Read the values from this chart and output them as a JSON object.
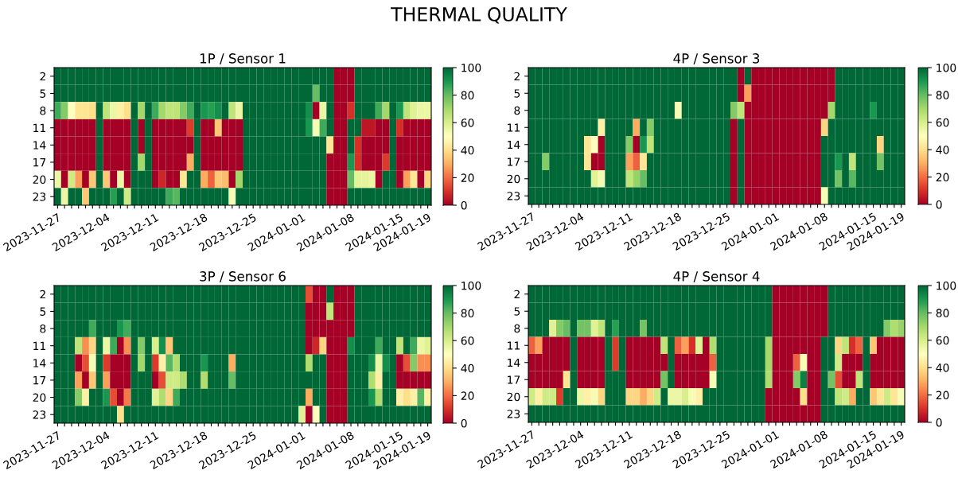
{
  "chart_data": [
    {
      "type": "other",
      "title": "THERMAL QUALITY"
    },
    {
      "type": "heatmap",
      "title": "1P / Sensor 1",
      "clim": [
        0,
        100
      ],
      "cticks": [
        0,
        20,
        40,
        60,
        80,
        100
      ],
      "categories": [
        "2023-11-27",
        null,
        null,
        null,
        null,
        null,
        null,
        "2023-12-04",
        null,
        null,
        null,
        null,
        null,
        null,
        "2023-12-11",
        null,
        null,
        null,
        null,
        null,
        null,
        "2023-12-18",
        null,
        null,
        null,
        null,
        null,
        null,
        "2023-12-25",
        null,
        null,
        null,
        null,
        null,
        null,
        "2024-01-01",
        null,
        null,
        null,
        null,
        null,
        null,
        "2024-01-08",
        null,
        null,
        null,
        null,
        null,
        null,
        "2024-01-15",
        null,
        null,
        null,
        "2024-01-19"
      ],
      "y_categories": [
        "2",
        "5",
        "8",
        "11",
        "14",
        "17",
        "20",
        "23"
      ],
      "cells": [
        [
          100,
          100,
          100,
          100,
          100,
          100,
          100,
          100,
          100,
          100,
          100,
          100,
          100,
          100,
          100,
          100,
          100,
          100,
          100,
          100,
          100,
          100,
          100,
          100,
          100,
          100,
          100,
          100,
          100,
          100,
          100,
          100,
          100,
          100,
          100,
          100,
          100,
          100,
          100,
          100,
          0,
          0,
          0,
          100,
          100,
          100,
          100,
          100,
          100,
          100,
          100,
          100,
          100,
          100
        ],
        [
          100,
          100,
          100,
          100,
          100,
          100,
          100,
          100,
          100,
          100,
          100,
          100,
          100,
          100,
          100,
          100,
          100,
          100,
          100,
          100,
          100,
          100,
          100,
          100,
          100,
          100,
          100,
          100,
          100,
          100,
          100,
          100,
          100,
          100,
          100,
          100,
          100,
          80,
          100,
          100,
          0,
          0,
          0,
          100,
          100,
          100,
          100,
          100,
          100,
          100,
          100,
          100,
          100,
          100
        ],
        [
          85,
          75,
          50,
          42,
          42,
          40,
          100,
          65,
          55,
          45,
          40,
          100,
          70,
          100,
          85,
          70,
          65,
          65,
          75,
          85,
          100,
          90,
          88,
          92,
          100,
          65,
          55,
          100,
          100,
          100,
          100,
          100,
          100,
          100,
          100,
          100,
          92,
          0,
          55,
          100,
          0,
          0,
          10,
          100,
          100,
          100,
          85,
          70,
          100,
          90,
          65,
          58,
          55,
          55
        ],
        [
          0,
          0,
          0,
          0,
          0,
          0,
          100,
          0,
          0,
          0,
          0,
          100,
          0,
          100,
          0,
          0,
          0,
          0,
          0,
          12,
          100,
          0,
          0,
          35,
          0,
          0,
          0,
          100,
          100,
          100,
          100,
          100,
          100,
          100,
          100,
          100,
          90,
          52,
          85,
          100,
          0,
          0,
          100,
          100,
          5,
          5,
          0,
          0,
          100,
          10,
          0,
          0,
          0,
          0
        ],
        [
          0,
          0,
          0,
          0,
          0,
          0,
          100,
          0,
          0,
          0,
          0,
          100,
          0,
          100,
          0,
          0,
          0,
          0,
          0,
          0,
          100,
          0,
          0,
          0,
          0,
          0,
          0,
          100,
          100,
          100,
          100,
          100,
          100,
          100,
          100,
          100,
          100,
          100,
          100,
          42,
          0,
          0,
          100,
          10,
          0,
          0,
          0,
          0,
          100,
          0,
          0,
          0,
          0,
          0
        ],
        [
          0,
          0,
          0,
          0,
          0,
          0,
          100,
          0,
          0,
          0,
          0,
          100,
          70,
          100,
          0,
          0,
          0,
          0,
          0,
          30,
          100,
          0,
          0,
          0,
          0,
          0,
          0,
          100,
          100,
          100,
          100,
          100,
          100,
          100,
          100,
          100,
          100,
          100,
          100,
          0,
          0,
          0,
          90,
          10,
          0,
          0,
          0,
          12,
          100,
          0,
          0,
          0,
          0,
          0
        ],
        [
          55,
          0,
          62,
          28,
          0,
          35,
          100,
          35,
          0,
          55,
          0,
          100,
          100,
          100,
          0,
          8,
          0,
          0,
          42,
          100,
          100,
          30,
          18,
          35,
          33,
          0,
          70,
          100,
          100,
          100,
          100,
          100,
          100,
          100,
          100,
          100,
          100,
          100,
          100,
          0,
          0,
          0,
          80,
          57,
          57,
          55,
          0,
          100,
          100,
          0,
          28,
          42,
          0,
          38
        ],
        [
          100,
          55,
          100,
          100,
          35,
          100,
          100,
          100,
          88,
          100,
          62,
          100,
          100,
          100,
          100,
          100,
          85,
          82,
          100,
          100,
          100,
          100,
          100,
          100,
          100,
          52,
          100,
          100,
          100,
          100,
          100,
          100,
          100,
          100,
          100,
          100,
          100,
          100,
          100,
          0,
          0,
          0,
          100,
          100,
          100,
          100,
          100,
          100,
          100,
          100,
          100,
          100,
          100,
          100
        ]
      ]
    },
    {
      "type": "heatmap",
      "title": "4P / Sensor 3",
      "clim": [
        0,
        100
      ],
      "cticks": [
        0,
        20,
        40,
        60,
        80,
        100
      ],
      "categories": [
        "2023-11-27",
        null,
        null,
        null,
        null,
        null,
        null,
        "2023-12-04",
        null,
        null,
        null,
        null,
        null,
        null,
        "2023-12-11",
        null,
        null,
        null,
        null,
        null,
        null,
        "2023-12-18",
        null,
        null,
        null,
        null,
        null,
        null,
        "2023-12-25",
        null,
        null,
        null,
        null,
        null,
        null,
        "2024-01-01",
        null,
        null,
        null,
        null,
        null,
        null,
        "2024-01-08",
        null,
        null,
        null,
        null,
        null,
        null,
        "2024-01-15",
        null,
        null,
        null,
        "2024-01-19"
      ],
      "y_categories": [
        "2",
        "5",
        "8",
        "11",
        "14",
        "17",
        "20",
        "23"
      ],
      "cells": [
        [
          100,
          100,
          100,
          100,
          100,
          100,
          100,
          100,
          100,
          100,
          100,
          100,
          100,
          100,
          100,
          100,
          100,
          100,
          100,
          100,
          100,
          100,
          100,
          100,
          100,
          100,
          100,
          100,
          100,
          100,
          0,
          100,
          0,
          0,
          0,
          0,
          0,
          0,
          0,
          0,
          0,
          0,
          0,
          0,
          100,
          100,
          100,
          100,
          100,
          100,
          100,
          100,
          100,
          100
        ],
        [
          100,
          100,
          100,
          100,
          100,
          100,
          100,
          100,
          100,
          100,
          100,
          100,
          100,
          100,
          100,
          100,
          100,
          100,
          100,
          100,
          100,
          100,
          100,
          100,
          100,
          100,
          100,
          100,
          100,
          100,
          0,
          28,
          0,
          0,
          0,
          0,
          0,
          0,
          0,
          0,
          0,
          0,
          0,
          0,
          100,
          100,
          100,
          100,
          100,
          100,
          100,
          100,
          100,
          100
        ],
        [
          100,
          100,
          100,
          100,
          100,
          100,
          100,
          100,
          100,
          100,
          100,
          100,
          100,
          100,
          100,
          100,
          100,
          100,
          100,
          100,
          100,
          52,
          100,
          100,
          100,
          100,
          100,
          100,
          100,
          75,
          65,
          0,
          0,
          0,
          0,
          0,
          0,
          0,
          0,
          0,
          0,
          0,
          0,
          70,
          100,
          100,
          100,
          100,
          100,
          90,
          100,
          100,
          100,
          100
        ],
        [
          100,
          100,
          100,
          100,
          100,
          100,
          100,
          100,
          100,
          100,
          45,
          100,
          100,
          100,
          100,
          30,
          100,
          75,
          100,
          100,
          100,
          100,
          100,
          100,
          100,
          100,
          100,
          100,
          100,
          0,
          100,
          0,
          0,
          0,
          0,
          0,
          0,
          0,
          0,
          0,
          0,
          0,
          38,
          100,
          100,
          100,
          100,
          100,
          100,
          100,
          100,
          100,
          100,
          100
        ],
        [
          100,
          100,
          100,
          100,
          100,
          100,
          100,
          100,
          42,
          50,
          0,
          100,
          100,
          100,
          75,
          0,
          90,
          65,
          100,
          100,
          100,
          100,
          100,
          100,
          100,
          100,
          100,
          100,
          100,
          0,
          100,
          0,
          0,
          0,
          0,
          0,
          0,
          0,
          0,
          0,
          0,
          0,
          100,
          100,
          100,
          100,
          100,
          100,
          100,
          100,
          38,
          100,
          100,
          100
        ],
        [
          100,
          100,
          75,
          100,
          100,
          100,
          100,
          100,
          42,
          0,
          0,
          100,
          100,
          100,
          28,
          18,
          42,
          100,
          100,
          100,
          100,
          100,
          100,
          100,
          100,
          100,
          100,
          100,
          100,
          0,
          100,
          0,
          0,
          0,
          0,
          0,
          0,
          0,
          0,
          0,
          0,
          0,
          100,
          100,
          90,
          100,
          65,
          100,
          100,
          100,
          78,
          100,
          100,
          100
        ],
        [
          100,
          100,
          100,
          100,
          100,
          100,
          100,
          100,
          100,
          58,
          53,
          100,
          100,
          100,
          65,
          72,
          80,
          100,
          100,
          100,
          100,
          100,
          100,
          100,
          100,
          100,
          100,
          100,
          100,
          0,
          100,
          0,
          0,
          0,
          0,
          0,
          0,
          0,
          0,
          0,
          0,
          0,
          100,
          100,
          78,
          100,
          82,
          100,
          100,
          100,
          100,
          100,
          100,
          100
        ],
        [
          100,
          100,
          100,
          100,
          100,
          100,
          100,
          100,
          100,
          100,
          100,
          100,
          100,
          100,
          100,
          100,
          100,
          100,
          100,
          100,
          100,
          100,
          100,
          100,
          100,
          100,
          100,
          100,
          100,
          0,
          100,
          0,
          0,
          0,
          0,
          0,
          0,
          0,
          0,
          0,
          0,
          0,
          52,
          100,
          100,
          100,
          100,
          100,
          100,
          100,
          100,
          100,
          100,
          100
        ]
      ]
    },
    {
      "type": "heatmap",
      "title": "3P / Sensor 6",
      "clim": [
        0,
        100
      ],
      "cticks": [
        0,
        20,
        40,
        60,
        80,
        100
      ],
      "categories": [
        "2023-11-27",
        null,
        null,
        null,
        null,
        null,
        null,
        "2023-12-04",
        null,
        null,
        null,
        null,
        null,
        null,
        "2023-12-11",
        null,
        null,
        null,
        null,
        null,
        null,
        "2023-12-18",
        null,
        null,
        null,
        null,
        null,
        null,
        "2023-12-25",
        null,
        null,
        null,
        null,
        null,
        null,
        "2024-01-01",
        null,
        null,
        null,
        null,
        null,
        null,
        "2024-01-08",
        null,
        null,
        null,
        null,
        null,
        null,
        "2024-01-15",
        null,
        null,
        null,
        "2024-01-19"
      ],
      "y_categories": [
        "2",
        "5",
        "8",
        "11",
        "14",
        "17",
        "20",
        "23"
      ],
      "cells": [
        [
          100,
          100,
          100,
          100,
          100,
          100,
          100,
          100,
          100,
          100,
          100,
          100,
          100,
          100,
          100,
          100,
          100,
          100,
          100,
          100,
          100,
          100,
          100,
          100,
          100,
          100,
          100,
          100,
          100,
          100,
          100,
          100,
          100,
          100,
          100,
          100,
          15,
          0,
          0,
          100,
          0,
          0,
          0,
          100,
          100,
          100,
          100,
          100,
          100,
          100,
          100,
          100,
          100,
          100
        ],
        [
          100,
          100,
          100,
          100,
          100,
          100,
          100,
          100,
          100,
          100,
          100,
          100,
          100,
          100,
          100,
          100,
          100,
          100,
          100,
          100,
          100,
          100,
          100,
          100,
          100,
          100,
          100,
          100,
          100,
          100,
          100,
          100,
          100,
          100,
          100,
          100,
          0,
          0,
          0,
          65,
          0,
          0,
          0,
          100,
          100,
          100,
          100,
          100,
          100,
          100,
          100,
          100,
          100,
          100
        ],
        [
          100,
          100,
          100,
          100,
          100,
          85,
          100,
          100,
          100,
          90,
          85,
          100,
          100,
          100,
          100,
          100,
          100,
          100,
          100,
          100,
          100,
          100,
          100,
          100,
          100,
          100,
          100,
          100,
          100,
          100,
          100,
          100,
          100,
          100,
          100,
          100,
          0,
          0,
          0,
          0,
          0,
          0,
          0,
          100,
          100,
          100,
          100,
          100,
          100,
          100,
          100,
          100,
          100,
          100
        ],
        [
          100,
          100,
          100,
          65,
          25,
          38,
          100,
          55,
          85,
          0,
          25,
          100,
          75,
          100,
          60,
          92,
          35,
          100,
          100,
          100,
          100,
          100,
          100,
          100,
          100,
          100,
          100,
          100,
          100,
          100,
          100,
          100,
          100,
          100,
          100,
          100,
          0,
          8,
          38,
          0,
          0,
          0,
          92,
          100,
          100,
          100,
          85,
          100,
          100,
          65,
          100,
          85,
          55,
          58
        ],
        [
          100,
          100,
          100,
          0,
          15,
          52,
          100,
          12,
          0,
          0,
          0,
          100,
          70,
          100,
          12,
          45,
          82,
          68,
          100,
          100,
          100,
          90,
          100,
          100,
          100,
          30,
          100,
          100,
          100,
          100,
          100,
          100,
          100,
          100,
          100,
          100,
          68,
          100,
          100,
          0,
          0,
          0,
          100,
          100,
          100,
          92,
          55,
          92,
          100,
          0,
          15,
          75,
          25,
          25
        ],
        [
          100,
          100,
          100,
          28,
          0,
          35,
          100,
          28,
          0,
          0,
          0,
          100,
          100,
          100,
          0,
          15,
          62,
          62,
          68,
          100,
          100,
          68,
          100,
          100,
          100,
          80,
          100,
          100,
          100,
          100,
          100,
          100,
          100,
          100,
          100,
          100,
          100,
          100,
          100,
          0,
          0,
          0,
          100,
          100,
          100,
          68,
          45,
          100,
          100,
          0,
          0,
          0,
          0,
          0
        ],
        [
          100,
          100,
          100,
          75,
          45,
          100,
          100,
          90,
          15,
          0,
          22,
          100,
          100,
          100,
          58,
          68,
          38,
          85,
          100,
          100,
          100,
          100,
          100,
          100,
          100,
          100,
          100,
          100,
          100,
          100,
          100,
          100,
          100,
          100,
          100,
          100,
          30,
          100,
          100,
          0,
          0,
          0,
          100,
          100,
          100,
          90,
          68,
          100,
          100,
          45,
          40,
          45,
          82,
          45
        ],
        [
          100,
          100,
          100,
          100,
          100,
          100,
          100,
          100,
          100,
          40,
          100,
          100,
          100,
          100,
          100,
          100,
          100,
          100,
          100,
          100,
          100,
          100,
          100,
          100,
          100,
          100,
          100,
          100,
          100,
          100,
          100,
          100,
          100,
          100,
          100,
          58,
          0,
          50,
          100,
          0,
          0,
          0,
          100,
          100,
          100,
          100,
          100,
          100,
          100,
          100,
          100,
          100,
          100,
          100
        ]
      ]
    },
    {
      "type": "heatmap",
      "title": "4P / Sensor 4",
      "clim": [
        0,
        100
      ],
      "cticks": [
        0,
        20,
        40,
        60,
        80,
        100
      ],
      "categories": [
        "2023-11-27",
        null,
        null,
        null,
        null,
        null,
        null,
        "2023-12-04",
        null,
        null,
        null,
        null,
        null,
        null,
        "2023-12-11",
        null,
        null,
        null,
        null,
        null,
        null,
        "2023-12-18",
        null,
        null,
        null,
        null,
        null,
        null,
        "2023-12-25",
        null,
        null,
        null,
        null,
        null,
        null,
        "2024-01-01",
        null,
        null,
        null,
        null,
        null,
        null,
        "2024-01-08",
        null,
        null,
        null,
        null,
        null,
        null,
        "2024-01-15",
        null,
        null,
        null,
        "2024-01-19"
      ],
      "y_categories": [
        "2",
        "5",
        "8",
        "11",
        "14",
        "17",
        "20",
        "23"
      ],
      "cells": [
        [
          100,
          100,
          100,
          100,
          100,
          100,
          100,
          100,
          100,
          100,
          100,
          100,
          100,
          100,
          100,
          100,
          100,
          100,
          100,
          100,
          100,
          100,
          100,
          100,
          100,
          100,
          100,
          100,
          100,
          100,
          100,
          100,
          100,
          100,
          100,
          0,
          0,
          0,
          0,
          0,
          0,
          0,
          0,
          100,
          100,
          100,
          100,
          100,
          100,
          100,
          100,
          100,
          100,
          100
        ],
        [
          100,
          100,
          100,
          100,
          100,
          100,
          100,
          100,
          100,
          100,
          100,
          100,
          100,
          100,
          100,
          100,
          100,
          100,
          100,
          100,
          100,
          100,
          100,
          100,
          100,
          100,
          100,
          100,
          100,
          100,
          100,
          100,
          100,
          100,
          100,
          0,
          0,
          0,
          0,
          0,
          0,
          0,
          0,
          100,
          100,
          100,
          100,
          100,
          100,
          100,
          100,
          100,
          100,
          100
        ],
        [
          100,
          100,
          100,
          58,
          75,
          80,
          100,
          78,
          78,
          58,
          65,
          100,
          88,
          100,
          100,
          100,
          78,
          100,
          100,
          100,
          100,
          100,
          100,
          100,
          100,
          100,
          100,
          100,
          100,
          100,
          100,
          100,
          100,
          100,
          100,
          0,
          0,
          0,
          0,
          0,
          0,
          0,
          0,
          100,
          100,
          100,
          100,
          100,
          100,
          100,
          100,
          75,
          68,
          72
        ],
        [
          18,
          28,
          0,
          0,
          0,
          0,
          100,
          0,
          0,
          0,
          0,
          100,
          12,
          100,
          0,
          0,
          0,
          0,
          0,
          65,
          100,
          18,
          28,
          10,
          58,
          0,
          68,
          100,
          100,
          100,
          100,
          100,
          100,
          100,
          70,
          0,
          0,
          0,
          0,
          0,
          0,
          0,
          100,
          100,
          38,
          65,
          10,
          18,
          100,
          35,
          0,
          0,
          0,
          0
        ],
        [
          0,
          0,
          0,
          0,
          0,
          0,
          100,
          0,
          0,
          0,
          0,
          100,
          12,
          100,
          0,
          0,
          0,
          0,
          0,
          0,
          100,
          0,
          0,
          0,
          0,
          0,
          18,
          100,
          100,
          100,
          100,
          100,
          100,
          100,
          70,
          0,
          0,
          0,
          18,
          52,
          0,
          0,
          100,
          100,
          62,
          0,
          0,
          0,
          100,
          0,
          0,
          0,
          0,
          0
        ],
        [
          0,
          0,
          0,
          0,
          0,
          42,
          100,
          0,
          0,
          0,
          0,
          100,
          100,
          100,
          0,
          0,
          0,
          0,
          0,
          78,
          100,
          0,
          0,
          0,
          0,
          0,
          52,
          100,
          100,
          100,
          100,
          100,
          100,
          100,
          68,
          0,
          0,
          0,
          75,
          95,
          0,
          0,
          100,
          78,
          15,
          0,
          0,
          65,
          100,
          0,
          0,
          0,
          0,
          0
        ],
        [
          62,
          45,
          62,
          62,
          12,
          100,
          100,
          55,
          45,
          52,
          38,
          100,
          100,
          100,
          38,
          38,
          30,
          38,
          62,
          100,
          55,
          55,
          60,
          52,
          45,
          100,
          100,
          100,
          100,
          100,
          100,
          100,
          100,
          100,
          0,
          0,
          0,
          0,
          0,
          40,
          0,
          0,
          100,
          100,
          65,
          62,
          30,
          100,
          100,
          35,
          42,
          62,
          42,
          52
        ],
        [
          100,
          100,
          100,
          100,
          100,
          100,
          100,
          100,
          100,
          100,
          100,
          100,
          100,
          100,
          100,
          100,
          100,
          100,
          100,
          100,
          100,
          100,
          100,
          100,
          100,
          100,
          100,
          100,
          100,
          100,
          100,
          100,
          100,
          100,
          0,
          0,
          0,
          0,
          0,
          0,
          0,
          0,
          100,
          100,
          100,
          100,
          100,
          100,
          100,
          100,
          100,
          100,
          100,
          100
        ]
      ]
    }
  ]
}
